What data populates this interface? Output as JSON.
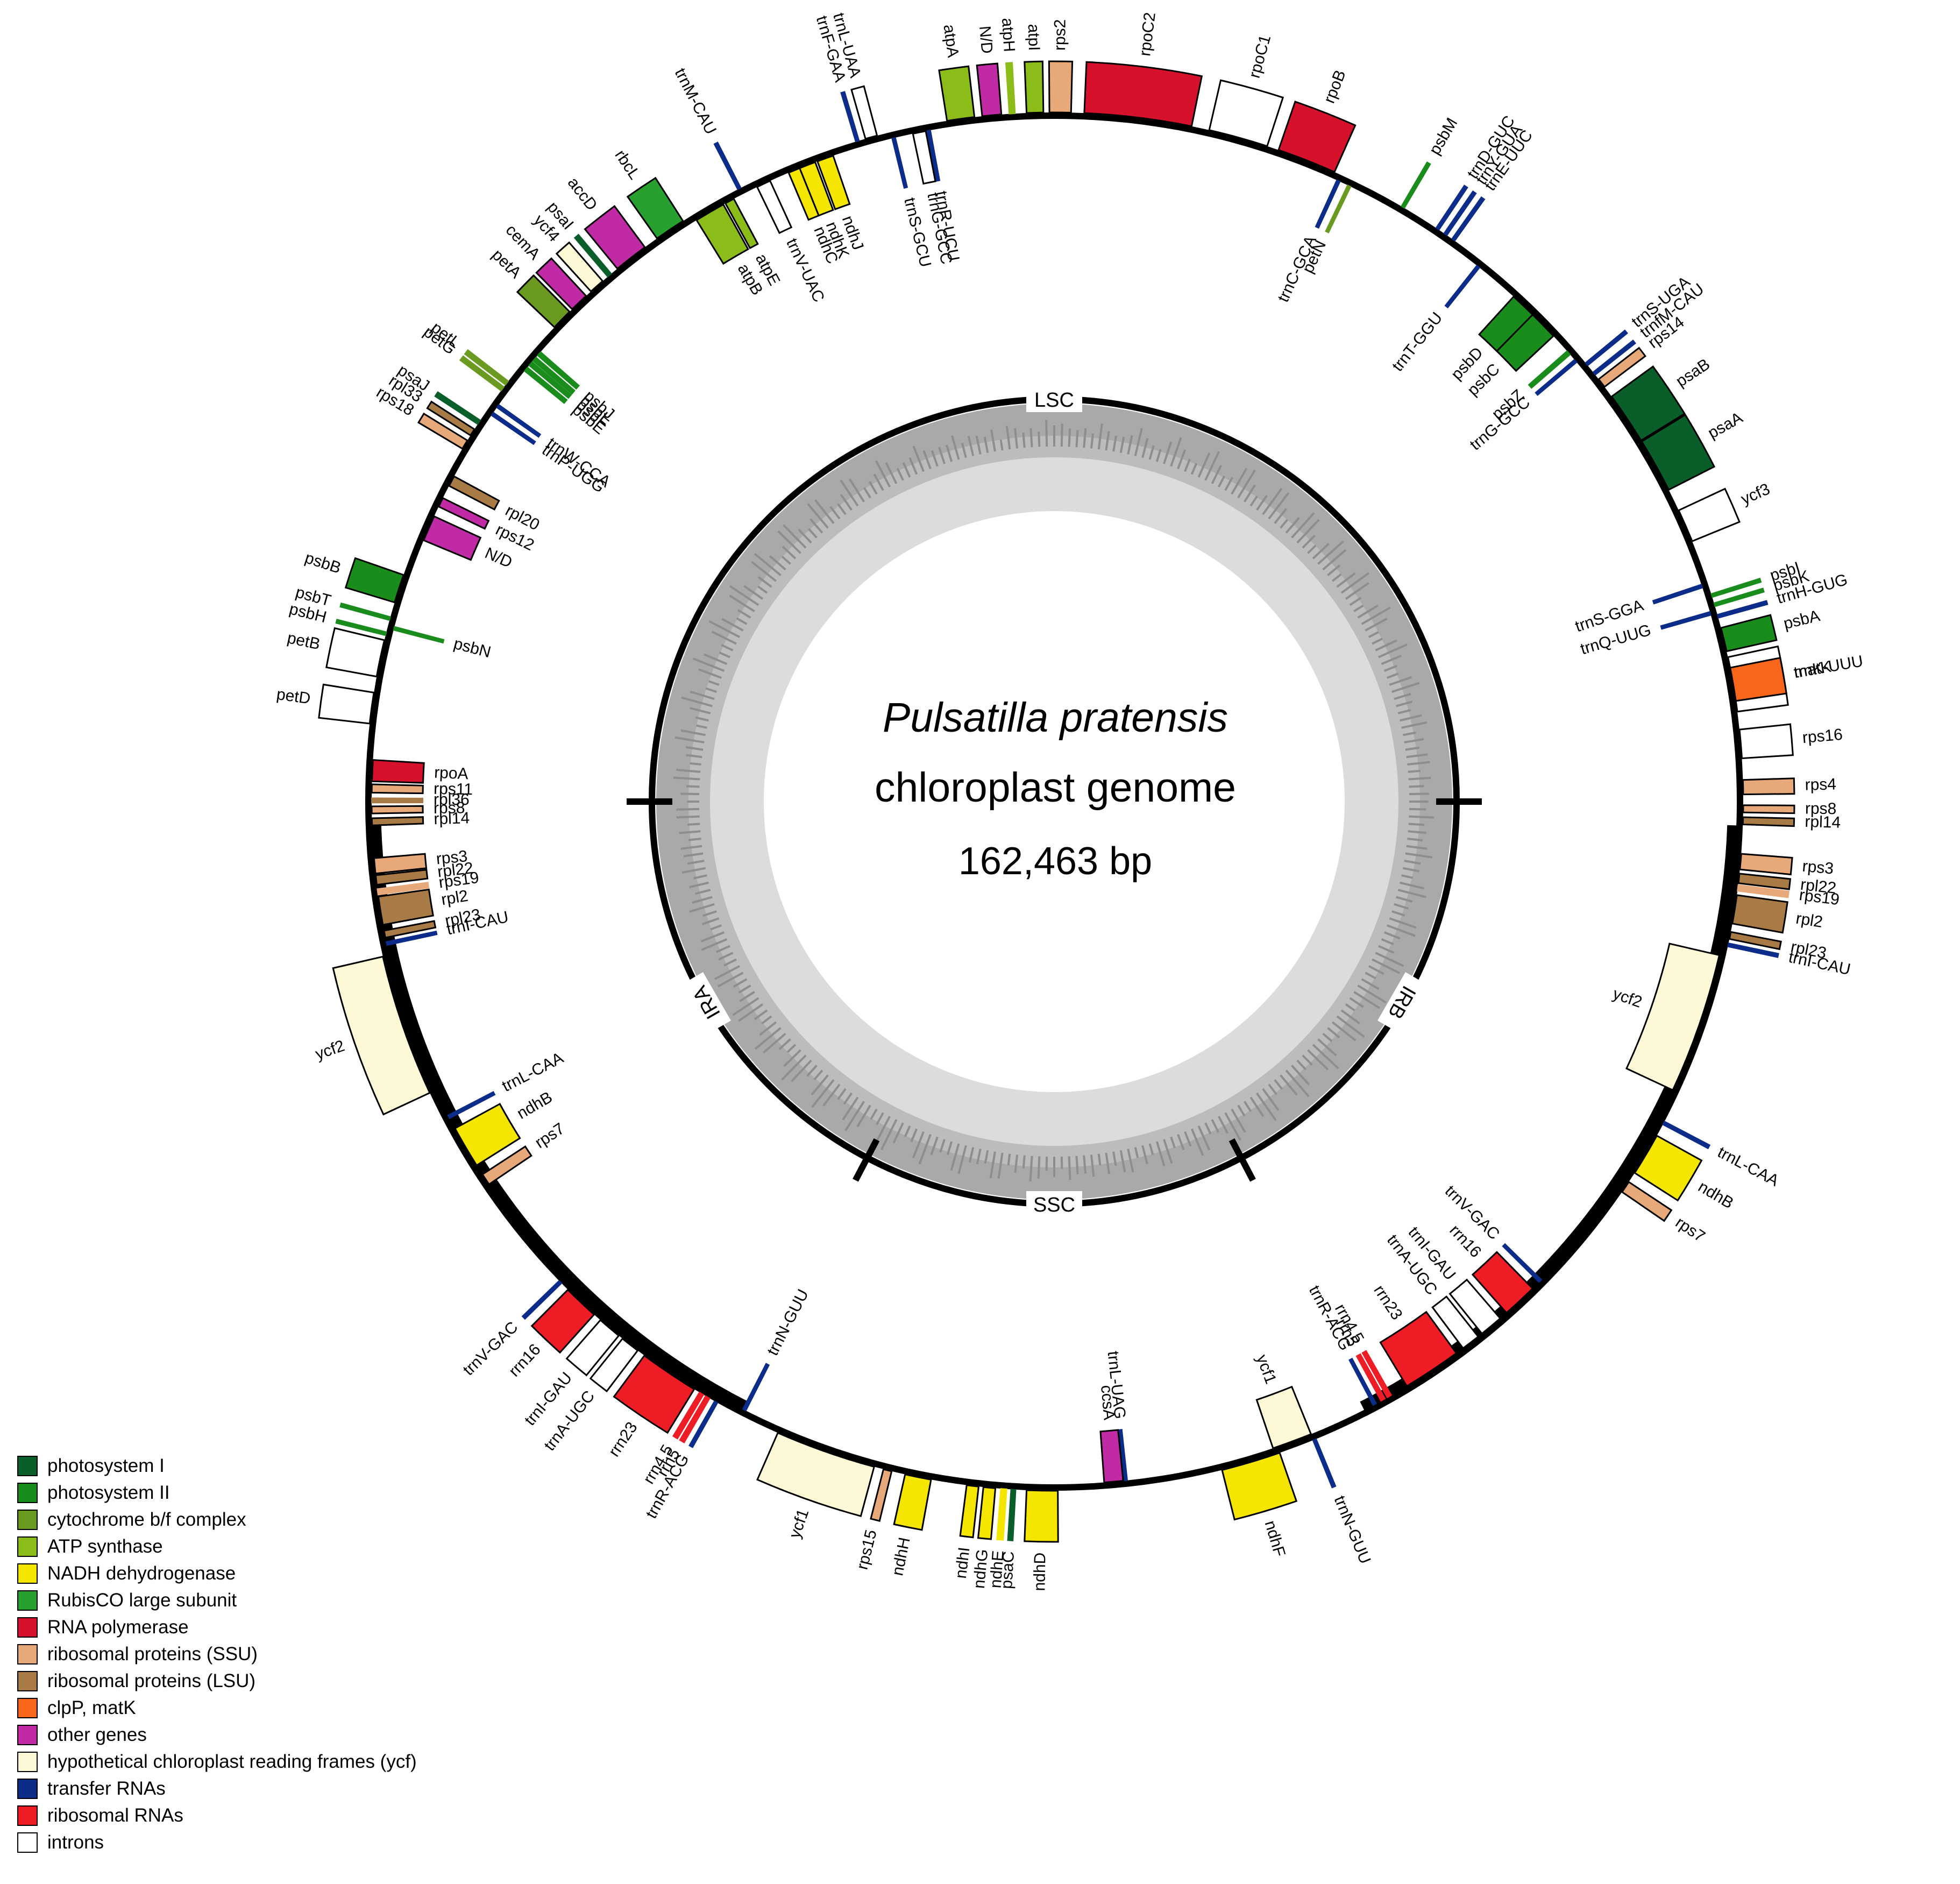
{
  "title": "Pulsatilla pratensis",
  "subtitle": "chloroplast genome",
  "size_label": "162,463 bp",
  "regions": {
    "lsc": "LSC",
    "ssc": "SSC",
    "ira": "IRA",
    "irb": "IRB"
  },
  "colors": {
    "photosystem_I": "#0a5e2a",
    "photosystem_II": "#198c1c",
    "cytochrome": "#6a9a1f",
    "atp": "#8cbc1a",
    "ndh": "#f5e600",
    "rubisco": "#27a030",
    "rnapol": "#d6112b",
    "rps": "#e8a97a",
    "rpl": "#a87a45",
    "clp": "#f7661a",
    "other": "#c12aa5",
    "ycf": "#fdf8d6",
    "trna": "#0c2c8a",
    "rrna": "#ee1c25",
    "intron": "#ffffff"
  },
  "legend": [
    {
      "label": "photosystem I",
      "color": "#0a5e2a"
    },
    {
      "label": "photosystem II",
      "color": "#198c1c"
    },
    {
      "label": "cytochrome b/f complex",
      "color": "#6a9a1f"
    },
    {
      "label": "ATP synthase",
      "color": "#8cbc1a"
    },
    {
      "label": "NADH dehydrogenase",
      "color": "#f5e600"
    },
    {
      "label": "RubisCO large subunit",
      "color": "#27a030"
    },
    {
      "label": "RNA polymerase",
      "color": "#d6112b"
    },
    {
      "label": "ribosomal proteins (SSU)",
      "color": "#e8a97a"
    },
    {
      "label": "ribosomal proteins (LSU)",
      "color": "#a87a45"
    },
    {
      "label": "clpP, matK",
      "color": "#f7661a"
    },
    {
      "label": "other genes",
      "color": "#c12aa5"
    },
    {
      "label": "hypothetical chloroplast reading frames (ycf)",
      "color": "#fdf8d6"
    },
    {
      "label": "transfer RNAs",
      "color": "#0c2c8a"
    },
    {
      "label": "ribosomal RNAs",
      "color": "#ee1c25"
    },
    {
      "label": "introns",
      "color": "#ffffff"
    }
  ],
  "genes": [
    {
      "name": "rpoC2",
      "cat": "rnapol",
      "a": 7,
      "w": 9,
      "side": "out"
    },
    {
      "name": "rps2",
      "cat": "rps",
      "a": 0.5,
      "w": 1.8,
      "side": "out"
    },
    {
      "name": "atpI",
      "cat": "atp",
      "a": -1.6,
      "w": 1.4,
      "side": "out"
    },
    {
      "name": "atpH",
      "cat": "atp",
      "a": -3.5,
      "w": 0.5,
      "side": "out"
    },
    {
      "name": "N/D",
      "cat": "other",
      "a": -5.2,
      "w": 1.6,
      "side": "out"
    },
    {
      "name": "atpA",
      "cat": "atp",
      "a": -7.8,
      "w": 2.3,
      "side": "out"
    },
    {
      "name": "trnR-UCU",
      "cat": "trna",
      "a": -10.6,
      "w": 0.3,
      "side": "in"
    },
    {
      "name": "trnG-GCC",
      "cat": "intron",
      "a": -11.4,
      "w": 1.1,
      "side": "in"
    },
    {
      "name": "trnS-GCU",
      "cat": "trna",
      "a": -13.6,
      "w": 0.3,
      "side": "in"
    },
    {
      "name": "trnL-UAA",
      "cat": "intron",
      "a": -15.4,
      "w": 1.0,
      "side": "out"
    },
    {
      "name": "trnF-GAA",
      "cat": "trna",
      "a": -16.6,
      "w": 0.3,
      "side": "out"
    },
    {
      "name": "ndhJ",
      "cat": "ndh",
      "a": -19.6,
      "w": 1.4,
      "side": "in"
    },
    {
      "name": "ndhK",
      "cat": "ndh",
      "a": -21.2,
      "w": 1.4,
      "side": "in"
    },
    {
      "name": "ndhC",
      "cat": "ndh",
      "a": -22.4,
      "w": 1.0,
      "side": "in"
    },
    {
      "name": "trnV-UAC",
      "cat": "intron",
      "a": -25.2,
      "w": 1.2,
      "side": "in"
    },
    {
      "name": "trnM-CAU",
      "cat": "trna",
      "a": -27.2,
      "w": 0.3,
      "side": "out"
    },
    {
      "name": "atpE",
      "cat": "atp",
      "a": -28.4,
      "w": 0.8,
      "side": "in"
    },
    {
      "name": "atpB",
      "cat": "atp",
      "a": -30.3,
      "w": 2.6,
      "side": "in"
    },
    {
      "name": "rbcL",
      "cat": "rubisco",
      "a": -33.9,
      "w": 2.6,
      "side": "out"
    },
    {
      "name": "accD",
      "cat": "other",
      "a": -37.9,
      "w": 2.9,
      "side": "out"
    },
    {
      "name": "psaI",
      "cat": "photosystem_I",
      "a": -40.2,
      "w": 0.4,
      "side": "out"
    },
    {
      "name": "ycf4",
      "cat": "ycf",
      "a": -41.6,
      "w": 1.3,
      "side": "out"
    },
    {
      "name": "cemA",
      "cat": "other",
      "a": -43.6,
      "w": 1.6,
      "side": "out"
    },
    {
      "name": "petA",
      "cat": "cytochrome",
      "a": -45.6,
      "w": 1.8,
      "side": "out"
    },
    {
      "name": "psbJ",
      "cat": "photosystem_II",
      "a": -49.0,
      "w": 0.4,
      "side": "in"
    },
    {
      "name": "psbL",
      "cat": "photosystem_II",
      "a": -49.6,
      "w": 0.4,
      "side": "in"
    },
    {
      "name": "psbF",
      "cat": "photosystem_II",
      "a": -50.1,
      "w": 0.4,
      "side": "in"
    },
    {
      "name": "psbE",
      "cat": "photosystem_II",
      "a": -50.7,
      "w": 0.4,
      "side": "in"
    },
    {
      "name": "petL",
      "cat": "cytochrome",
      "a": -52.6,
      "w": 0.4,
      "side": "out"
    },
    {
      "name": "petG",
      "cat": "cytochrome",
      "a": -53.2,
      "w": 0.4,
      "side": "out"
    },
    {
      "name": "trnW-CCA",
      "cat": "trna",
      "a": -54.6,
      "w": 0.3,
      "side": "in"
    },
    {
      "name": "trnP-UGG",
      "cat": "trna",
      "a": -55.4,
      "w": 0.3,
      "side": "in"
    },
    {
      "name": "psaJ",
      "cat": "photosystem_I",
      "a": -56.6,
      "w": 0.4,
      "side": "out"
    },
    {
      "name": "rpl33",
      "cat": "rpl",
      "a": -57.6,
      "w": 0.6,
      "side": "out"
    },
    {
      "name": "rps18",
      "cat": "rps",
      "a": -58.8,
      "w": 0.8,
      "side": "out"
    },
    {
      "name": "rpl20",
      "cat": "rpl",
      "a": -62.0,
      "w": 0.9,
      "side": "in"
    },
    {
      "name": "rps12",
      "cat": "other",
      "a": -64.0,
      "w": 0.8,
      "side": "in"
    },
    {
      "name": "N/D",
      "cat": "other",
      "a": -66.4,
      "w": 2.2,
      "side": "in"
    },
    {
      "name": "psbB",
      "cat": "photosystem_II",
      "a": -72.0,
      "w": 2.4,
      "side": "out"
    },
    {
      "name": "psbT",
      "cat": "photosystem_II",
      "a": -74.6,
      "w": 0.3,
      "side": "out"
    },
    {
      "name": "psbN",
      "cat": "photosystem_II",
      "a": -75.3,
      "w": 0.3,
      "side": "in"
    },
    {
      "name": "psbH",
      "cat": "photosystem_II",
      "a": -75.9,
      "w": 0.3,
      "side": "out"
    },
    {
      "name": "petB",
      "cat": "intron",
      "a": -78.0,
      "w": 3.1,
      "side": "out"
    },
    {
      "name": "petD",
      "cat": "intron",
      "a": -82.2,
      "w": 2.6,
      "side": "out"
    },
    {
      "name": "rpoA",
      "cat": "rnapol",
      "a": -87.4,
      "w": 1.8,
      "side": "in"
    },
    {
      "name": "rps11",
      "cat": "rps",
      "a": -88.9,
      "w": 0.7,
      "side": "in"
    },
    {
      "name": "rpl36",
      "cat": "rpl",
      "a": -89.9,
      "w": 0.4,
      "side": "in"
    },
    {
      "name": "rps8",
      "cat": "rps",
      "a": -90.7,
      "w": 0.6,
      "side": "in"
    },
    {
      "name": "rpl14",
      "cat": "rpl",
      "a": -91.7,
      "w": 0.6,
      "side": "in"
    },
    {
      "name": "rps3",
      "cat": "rps",
      "a": -95.4,
      "w": 1.3,
      "side": "in"
    },
    {
      "name": "rpl22",
      "cat": "rpl",
      "a": -96.6,
      "w": 0.8,
      "side": "in"
    },
    {
      "name": "rps19",
      "cat": "rps",
      "a": -97.6,
      "w": 0.5,
      "side": "in"
    },
    {
      "name": "rpl2",
      "cat": "rpl",
      "a": -99.2,
      "w": 2.4,
      "side": "in"
    },
    {
      "name": "rpl23",
      "cat": "rpl",
      "a": -101.2,
      "w": 0.6,
      "side": "in"
    },
    {
      "name": "trnI-CAU",
      "cat": "trna",
      "a": -102.0,
      "w": 0.3,
      "side": "in"
    },
    {
      "name": "ycf2",
      "cat": "ycf",
      "a": -109.0,
      "w": 12,
      "side": "out"
    },
    {
      "name": "trnL-CAA",
      "cat": "trna",
      "a": -117.5,
      "w": 0.3,
      "side": "in"
    },
    {
      "name": "ndhB",
      "cat": "ndh",
      "a": -120.4,
      "w": 3.6,
      "side": "in"
    },
    {
      "name": "rps7",
      "cat": "rps",
      "a": -123.6,
      "w": 1.0,
      "side": "in"
    },
    {
      "name": "trnV-GAC",
      "cat": "trna",
      "a": -134.2,
      "w": 0.3,
      "side": "out"
    },
    {
      "name": "rrn16",
      "cat": "rrna",
      "a": -136.6,
      "w": 3.0,
      "side": "out"
    },
    {
      "name": "trnI-GAU",
      "cat": "intron",
      "a": -139.8,
      "w": 2.0,
      "side": "out"
    },
    {
      "name": "trnA-UGC",
      "cat": "intron",
      "a": -142.0,
      "w": 1.6,
      "side": "out"
    },
    {
      "name": "rrn23",
      "cat": "rrna",
      "a": -146.0,
      "w": 5.0,
      "side": "out"
    },
    {
      "name": "rrn4.5",
      "cat": "rrna",
      "a": -149.2,
      "w": 0.4,
      "side": "out"
    },
    {
      "name": "rrn5",
      "cat": "rrna",
      "a": -149.8,
      "w": 0.4,
      "side": "out"
    },
    {
      "name": "trnR-ACG",
      "cat": "trna",
      "a": -150.6,
      "w": 0.3,
      "side": "out"
    },
    {
      "name": "trnN-GUU",
      "cat": "trna",
      "a": -153.0,
      "w": 0.3,
      "side": "in"
    },
    {
      "name": "ycf1",
      "cat": "ycf",
      "a": -160.6,
      "w": 8.5,
      "side": "out"
    },
    {
      "name": "rps15",
      "cat": "rps",
      "a": -166.0,
      "w": 0.7,
      "side": "out"
    },
    {
      "name": "ndhH",
      "cat": "ndh",
      "a": -168.6,
      "w": 2.2,
      "side": "out"
    },
    {
      "name": "ndhI",
      "cat": "ndh",
      "a": -173.2,
      "w": 1.0,
      "side": "out"
    },
    {
      "name": "ndhG",
      "cat": "ndh",
      "a": -174.6,
      "w": 1.0,
      "side": "out"
    },
    {
      "name": "ndhE",
      "cat": "ndh",
      "a": -175.8,
      "w": 0.5,
      "side": "out"
    },
    {
      "name": "psaC",
      "cat": "photosystem_I",
      "a": -176.6,
      "w": 0.4,
      "side": "out"
    },
    {
      "name": "ndhD",
      "cat": "ndh",
      "a": -179.0,
      "w": 2.6,
      "side": "out"
    },
    {
      "name": "trnL-UAG",
      "cat": "trna",
      "a": 174.0,
      "w": 0.3,
      "side": "in"
    },
    {
      "name": "ccsA",
      "cat": "other",
      "a": 175.0,
      "w": 1.6,
      "side": "in"
    },
    {
      "name": "ndhF",
      "cat": "ndh",
      "a": 163.4,
      "w": 5.0,
      "side": "out"
    },
    {
      "name": "ycf1",
      "cat": "ycf",
      "a": 159.6,
      "w": 3.4,
      "side": "in"
    },
    {
      "name": "trnN-GUU",
      "cat": "trna",
      "a": 157.8,
      "w": 0.3,
      "side": "out"
    },
    {
      "name": "trnR-ACG",
      "cat": "trna",
      "a": 152.0,
      "w": 0.3,
      "side": "in"
    },
    {
      "name": "rrn5",
      "cat": "rrna",
      "a": 151.2,
      "w": 0.4,
      "side": "in"
    },
    {
      "name": "rrn4.5",
      "cat": "rrna",
      "a": 150.6,
      "w": 0.4,
      "side": "in"
    },
    {
      "name": "rrn23",
      "cat": "rrna",
      "a": 146.4,
      "w": 5.0,
      "side": "in"
    },
    {
      "name": "trnA-UGC",
      "cat": "intron",
      "a": 142.4,
      "w": 1.6,
      "side": "in"
    },
    {
      "name": "trnI-GAU",
      "cat": "intron",
      "a": 140.2,
      "w": 2.0,
      "side": "in"
    },
    {
      "name": "rrn16",
      "cat": "rrna",
      "a": 137.0,
      "w": 3.0,
      "side": "in"
    },
    {
      "name": "trnV-GAC",
      "cat": "trna",
      "a": 134.6,
      "w": 0.3,
      "side": "in"
    },
    {
      "name": "rps7",
      "cat": "rps",
      "a": 124.0,
      "w": 1.0,
      "side": "out"
    },
    {
      "name": "ndhB",
      "cat": "ndh",
      "a": 120.8,
      "w": 3.6,
      "side": "out"
    },
    {
      "name": "trnL-CAA",
      "cat": "trna",
      "a": 117.8,
      "w": 0.3,
      "side": "out"
    },
    {
      "name": "ycf2",
      "cat": "ycf",
      "a": 109.0,
      "w": 12,
      "side": "in"
    },
    {
      "name": "trnI-CAU",
      "cat": "trna",
      "a": 102.0,
      "w": 0.3,
      "side": "out"
    },
    {
      "name": "rpl23",
      "cat": "rpl",
      "a": 101.2,
      "w": 0.6,
      "side": "out"
    },
    {
      "name": "rpl2",
      "cat": "rpl",
      "a": 99.0,
      "w": 2.4,
      "side": "out"
    },
    {
      "name": "rps19",
      "cat": "rps",
      "a": 97.2,
      "w": 0.5,
      "side": "out"
    },
    {
      "name": "rpl22",
      "cat": "rpl",
      "a": 96.4,
      "w": 0.8,
      "side": "out"
    },
    {
      "name": "rps3",
      "cat": "rps",
      "a": 95.0,
      "w": 1.3,
      "side": "out"
    },
    {
      "name": "rpl14",
      "cat": "rpl",
      "a": 91.6,
      "w": 0.6,
      "side": "out"
    },
    {
      "name": "rps8",
      "cat": "rps",
      "a": 90.6,
      "w": 0.6,
      "side": "out"
    },
    {
      "name": "rps4",
      "cat": "rps",
      "a": 88.8,
      "w": 1.2,
      "side": "out"
    },
    {
      "name": "rps16",
      "cat": "intron",
      "a": 85.2,
      "w": 2.4,
      "side": "out"
    },
    {
      "name": "trnK-UUU",
      "cat": "intron",
      "a": 80.2,
      "w": 4.6,
      "side": "out"
    },
    {
      "name": "matK",
      "cat": "clp",
      "a": 80.2,
      "w": 2.8,
      "side": "out"
    },
    {
      "name": "psbA",
      "cat": "photosystem_II",
      "a": 76.4,
      "w": 2.0,
      "side": "out"
    },
    {
      "name": "trnH-GUG",
      "cat": "trna",
      "a": 74.4,
      "w": 0.3,
      "side": "out"
    },
    {
      "name": "trnQ-UUG",
      "cat": "trna",
      "a": 74.0,
      "w": 0.3,
      "side": "in"
    },
    {
      "name": "psbK",
      "cat": "photosystem_II",
      "a": 73.4,
      "w": 0.3,
      "side": "out"
    },
    {
      "name": "psbI",
      "cat": "photosystem_II",
      "a": 72.6,
      "w": 0.3,
      "side": "out"
    },
    {
      "name": "trnS-GGA",
      "cat": "trna",
      "a": 71.6,
      "w": 0.3,
      "side": "in"
    },
    {
      "name": "ycf3",
      "cat": "intron",
      "a": 66.4,
      "w": 2.8,
      "side": "out"
    },
    {
      "name": "psaA",
      "cat": "photosystem_I",
      "a": 60.8,
      "w": 4.6,
      "side": "out"
    },
    {
      "name": "psaB",
      "cat": "photosystem_I",
      "a": 56.2,
      "w": 4.4,
      "side": "out"
    },
    {
      "name": "rps14",
      "cat": "rps",
      "a": 52.6,
      "w": 0.8,
      "side": "out"
    },
    {
      "name": "trnfM-CAU",
      "cat": "trna",
      "a": 51.6,
      "w": 0.3,
      "side": "out"
    },
    {
      "name": "trnS-UGA",
      "cat": "trna",
      "a": 50.6,
      "w": 0.3,
      "side": "out"
    },
    {
      "name": "trnG-GCC",
      "cat": "trna",
      "a": 49.8,
      "w": 0.3,
      "side": "in"
    },
    {
      "name": "psbZ",
      "cat": "photosystem_II",
      "a": 48.9,
      "w": 0.4,
      "side": "in"
    },
    {
      "name": "psbC",
      "cat": "photosystem_II",
      "a": 45.6,
      "w": 2.8,
      "side": "in"
    },
    {
      "name": "psbD",
      "cat": "photosystem_II",
      "a": 43.4,
      "w": 2.2,
      "side": "in"
    },
    {
      "name": "trnT-GGU",
      "cat": "trna",
      "a": 38.4,
      "w": 0.3,
      "side": "in"
    },
    {
      "name": "trnE-UUC",
      "cat": "trna",
      "a": 35.4,
      "w": 0.3,
      "side": "out"
    },
    {
      "name": "trnY-GUA",
      "cat": "trna",
      "a": 34.6,
      "w": 0.3,
      "side": "out"
    },
    {
      "name": "trnD-GUC",
      "cat": "trna",
      "a": 33.8,
      "w": 0.3,
      "side": "out"
    },
    {
      "name": "psbM",
      "cat": "photosystem_II",
      "a": 30.4,
      "w": 0.3,
      "side": "out"
    },
    {
      "name": "petN",
      "cat": "cytochrome",
      "a": 25.6,
      "w": 0.3,
      "side": "in"
    },
    {
      "name": "trnC-GCA",
      "cat": "trna",
      "a": 24.6,
      "w": 0.3,
      "side": "in"
    },
    {
      "name": "rpoB",
      "cat": "rnapol",
      "a": 21.5,
      "w": 5.0,
      "side": "out"
    },
    {
      "name": "rpoC1",
      "cat": "intron",
      "a": 15.5,
      "w": 5.0,
      "side": "out"
    }
  ]
}
